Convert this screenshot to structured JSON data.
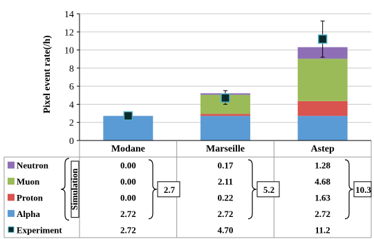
{
  "chart_data": {
    "type": "bar",
    "stacked": true,
    "ylabel": "Pixel event rate(/h)",
    "ylim": [
      0,
      14
    ],
    "yticks": [
      0,
      2,
      4,
      6,
      8,
      10,
      12,
      14
    ],
    "grid": true,
    "categories": [
      "Modane",
      "Marseille",
      "Astep"
    ],
    "series": [
      {
        "name": "Alpha",
        "color": "#5b9bd5",
        "values": [
          2.72,
          2.72,
          2.72
        ]
      },
      {
        "name": "Proton",
        "color": "#d9534f",
        "values": [
          0.0,
          0.22,
          1.63
        ]
      },
      {
        "name": "Muon",
        "color": "#9bbb59",
        "values": [
          0.0,
          2.11,
          4.68
        ]
      },
      {
        "name": "Neutron",
        "color": "#8e6fb6",
        "values": [
          0.0,
          0.17,
          1.28
        ]
      }
    ],
    "experiment": {
      "name": "Experiment",
      "values": [
        2.72,
        4.7,
        11.2
      ],
      "error_low": [
        2.6,
        4.0,
        9.2
      ],
      "error_high": [
        2.85,
        5.5,
        13.2
      ],
      "marker_color": "#0b2a2a",
      "marker_edge": "#4fb3c8"
    },
    "table": {
      "simulation_label": "Simulation",
      "rows": [
        {
          "name": "Neutron",
          "cells": [
            "0.00",
            "0.17",
            "1.28"
          ]
        },
        {
          "name": "Muon",
          "cells": [
            "0.00",
            "2.11",
            "4.68"
          ]
        },
        {
          "name": "Proton",
          "cells": [
            "0.00",
            "0.22",
            "1.63"
          ]
        },
        {
          "name": "Alpha",
          "cells": [
            "2.72",
            "2.72",
            "2.72"
          ]
        },
        {
          "name": "Experiment",
          "cells": [
            "2.72",
            "4.70",
            "11.2"
          ]
        }
      ],
      "totals": [
        "2.7",
        "5.2",
        "10.3"
      ]
    }
  }
}
